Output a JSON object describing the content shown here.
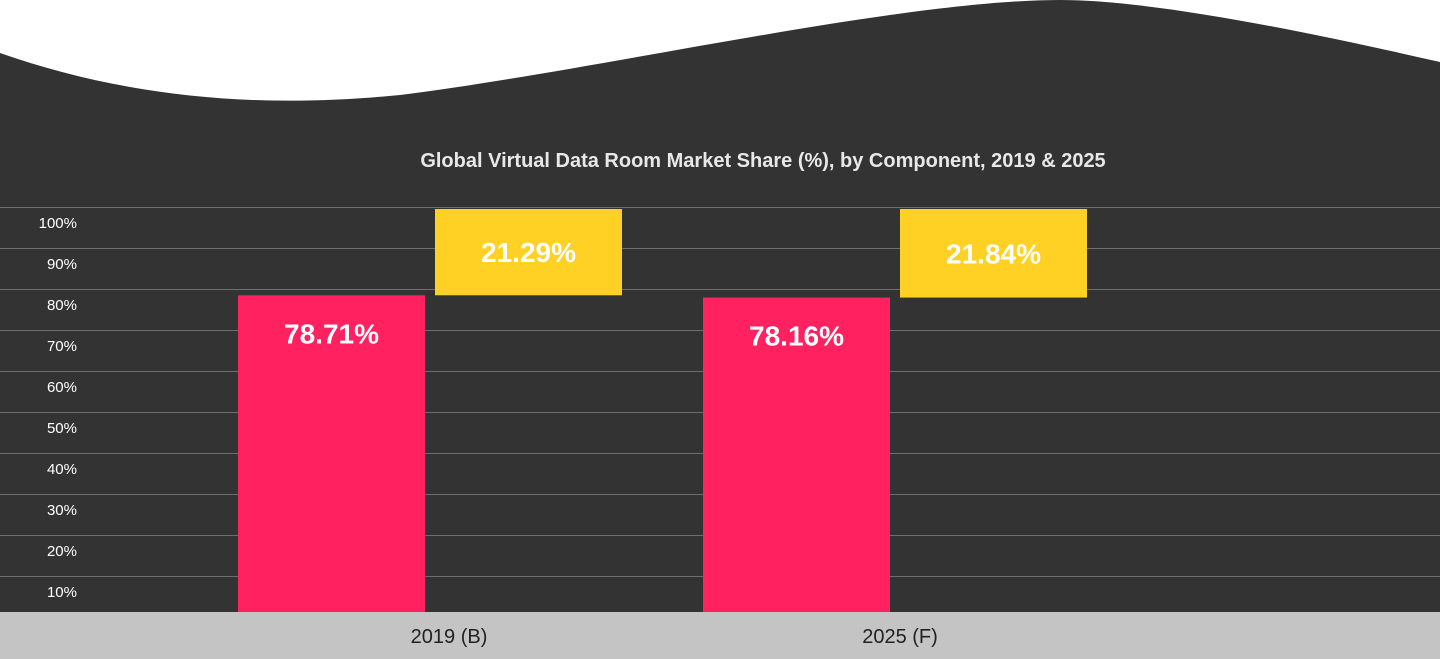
{
  "colors": {
    "background": "#333333",
    "wave": "#ffffff",
    "axis_band": "#c4c4c4",
    "grid": "#6e6e6e",
    "series_primary": "#ff2160",
    "series_secondary": "#ffd124"
  },
  "chart_data": {
    "type": "bar",
    "title": "Global Virtual Data Room Market Share (%), by Component, 2019 & 2025",
    "categories": [
      "2019 (B)",
      "2025 (F)"
    ],
    "series": [
      {
        "values": [
          78.71,
          78.16
        ],
        "labels": [
          "78.71%",
          "78.16%"
        ],
        "color": "#ff2160"
      },
      {
        "values": [
          21.29,
          21.84
        ],
        "labels": [
          "21.29%",
          "21.84%"
        ],
        "color": "#ffd124"
      }
    ],
    "yticks": [
      "10%",
      "20%",
      "30%",
      "40%",
      "50%",
      "60%",
      "70%",
      "80%",
      "90%",
      "100%"
    ],
    "ylim": [
      0,
      100
    ],
    "grid": true,
    "legend": "none"
  }
}
